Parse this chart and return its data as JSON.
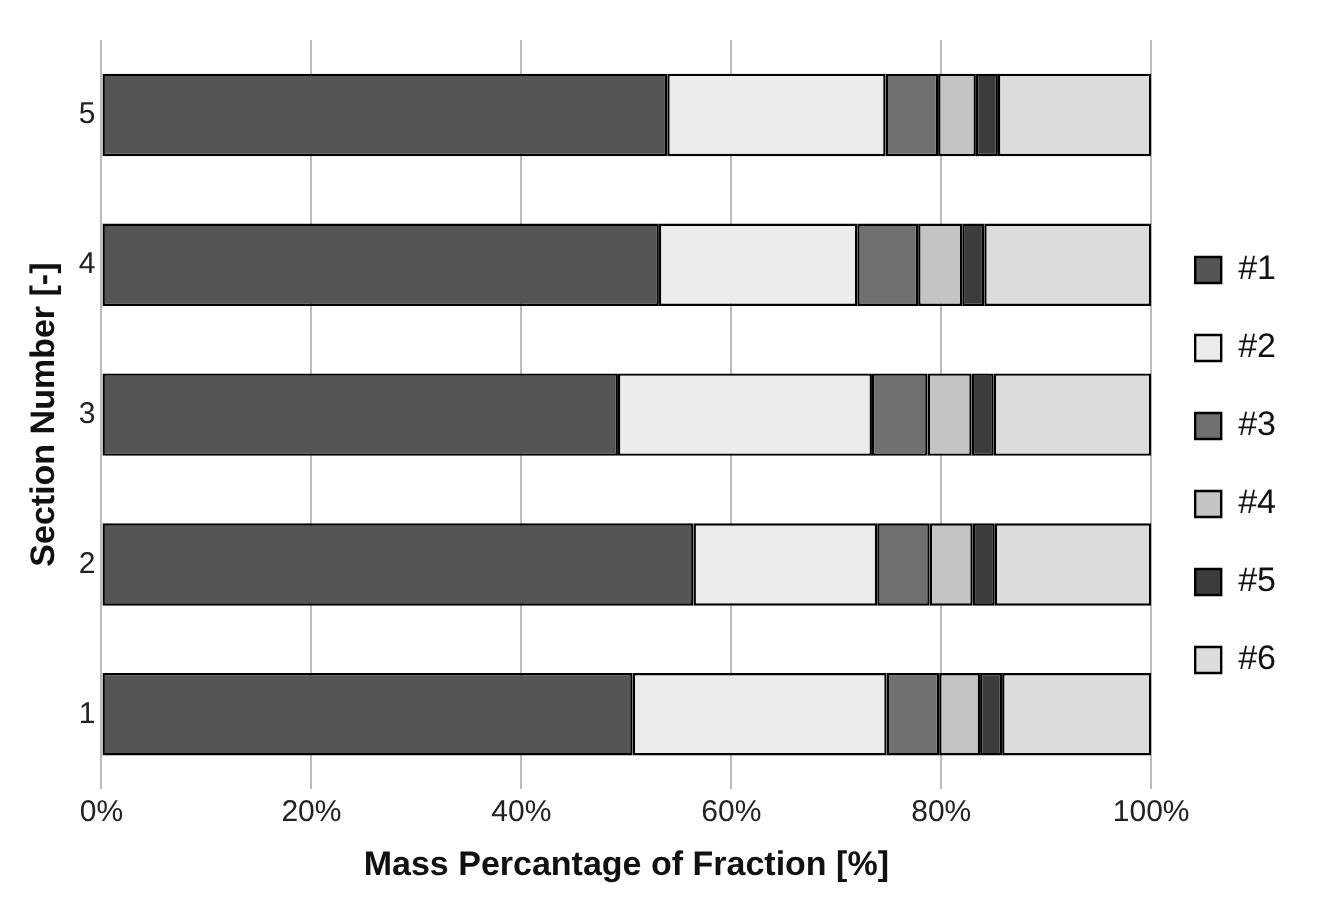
{
  "chart_data": {
    "type": "bar",
    "orientation": "horizontal",
    "stacked": true,
    "xlabel": "Mass Percantage of Fraction [%]",
    "ylabel": "Section Number [-]",
    "categories": [
      "5",
      "4",
      "3",
      "2",
      "1"
    ],
    "series": [
      {
        "name": "#1",
        "color": "#555555",
        "values": [
          53.9,
          53.1,
          49.2,
          56.4,
          50.6
        ]
      },
      {
        "name": "#2",
        "color": "#ececec",
        "values": [
          20.8,
          18.9,
          24.2,
          17.5,
          24.2
        ]
      },
      {
        "name": "#3",
        "color": "#707070",
        "values": [
          5.0,
          5.8,
          5.3,
          5.0,
          5.0
        ]
      },
      {
        "name": "#4",
        "color": "#c4c4c4",
        "values": [
          3.6,
          4.2,
          4.2,
          4.1,
          3.9
        ]
      },
      {
        "name": "#5",
        "color": "#3c3c3c",
        "values": [
          2.1,
          2.1,
          2.1,
          2.1,
          2.1
        ]
      },
      {
        "name": "#6",
        "color": "#dcdcdc",
        "values": [
          14.6,
          15.9,
          15.0,
          14.9,
          14.2
        ]
      }
    ],
    "xlim": [
      0,
      100
    ],
    "xticks": [
      {
        "value": 0,
        "label": "0%"
      },
      {
        "value": 20,
        "label": "20%"
      },
      {
        "value": 40,
        "label": "40%"
      },
      {
        "value": 60,
        "label": "60%"
      },
      {
        "value": 80,
        "label": "80%"
      },
      {
        "value": 100,
        "label": "100%"
      }
    ],
    "grid": "x",
    "legend": "right"
  }
}
